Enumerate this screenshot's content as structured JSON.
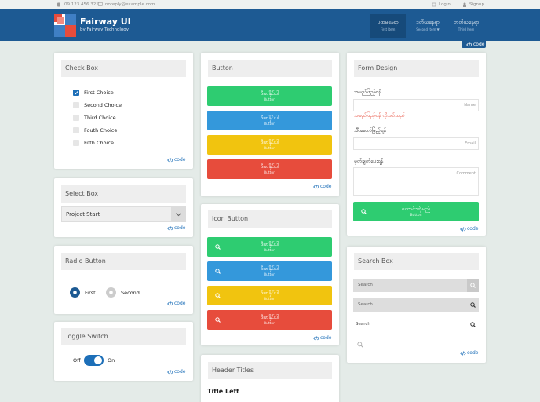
{
  "topbar": {
    "phone": "09 123 456 321",
    "email": "noreply@example.com",
    "login": "Login",
    "signup": "Signup"
  },
  "header": {
    "title": "Fairway UI",
    "subtitle": "by Fairway Technology",
    "nav": [
      {
        "label": "ပထမနေရာ",
        "sub": "First Item"
      },
      {
        "label": "ဒုတိယနေရာ",
        "sub": "Second Item ▼"
      },
      {
        "label": "တတိယနေရာ",
        "sub": "Third Item"
      }
    ]
  },
  "code_label": "code",
  "checkbox": {
    "title": "Check Box",
    "items": [
      "First Choice",
      "Second Choice",
      "Third Choice",
      "Fouth Choice",
      "Fifth Choice"
    ]
  },
  "select": {
    "title": "Select Box",
    "value": "Project Start"
  },
  "radio": {
    "title": "Radio Button",
    "options": [
      "First",
      "Second"
    ]
  },
  "toggle": {
    "title": "Toggle Switch",
    "off": "Off",
    "on": "On"
  },
  "buttons": {
    "title": "Button",
    "label": "ဒီမှာနှိပ်ပါ",
    "sub": "Button",
    "colors": [
      "#2ecc71",
      "#3498db",
      "#f1c40f",
      "#e74c3c"
    ]
  },
  "icon_buttons": {
    "title": "Icon Button",
    "label": "ဒီမှာနှိပ်ပါ",
    "sub": "Button",
    "colors": [
      "#2ecc71",
      "#3498db",
      "#f1c40f",
      "#e74c3c"
    ]
  },
  "header_titles": {
    "title": "Header Titles",
    "left": "Title Left"
  },
  "form": {
    "title": "Form Design",
    "name_label": "အမည်ဖြည့်ရန်",
    "name_placeholder": "Name",
    "error": "အမည်ဖြည့်ရန် လိုအပ်သည်",
    "email_label": "အီးမေးလ်ဖြည့်ရန်",
    "email_placeholder": "Email",
    "comment_label": "မှတ်ချက်ပေးရန်",
    "comment_placeholder": "Comment",
    "submit": "တောင်းဆိုမည်",
    "submit_sub": "Button",
    "submit_color": "#2ecc71"
  },
  "search": {
    "title": "Search Box",
    "placeholders": [
      "Search",
      "Search",
      "Search"
    ]
  }
}
